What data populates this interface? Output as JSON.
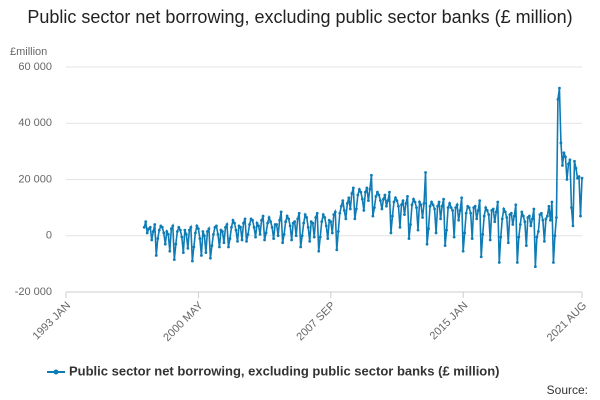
{
  "chart_data": {
    "type": "line",
    "title": "Public sector net borrowing, excluding public sector banks (£ million)",
    "y_unit": "£million",
    "source": "Source:",
    "xlim": [
      "1993-01",
      "2021-08"
    ],
    "xticks": [
      {
        "value": "1993-01",
        "label": "1993 JAN"
      },
      {
        "value": "2000-05",
        "label": "2000 MAY"
      },
      {
        "value": "2007-09",
        "label": "2007 SEP"
      },
      {
        "value": "2015-01",
        "label": "2015 JAN"
      },
      {
        "value": "2021-08",
        "label": "2021 AUG"
      }
    ],
    "ylim": [
      -20000,
      60000
    ],
    "yticks": [
      {
        "value": -20000,
        "label": "-20 000"
      },
      {
        "value": 0,
        "label": "0"
      },
      {
        "value": 20000,
        "label": "20 000"
      },
      {
        "value": 40000,
        "label": "40 000"
      },
      {
        "value": 60000,
        "label": "60 000"
      }
    ],
    "grid": true,
    "x": [
      "1997-05",
      "1997-06",
      "1997-07",
      "1997-08",
      "1997-09",
      "1997-10",
      "1997-11",
      "1997-12",
      "1998-01",
      "1998-02",
      "1998-03",
      "1998-04",
      "1998-05",
      "1998-06",
      "1998-07",
      "1998-08",
      "1998-09",
      "1998-10",
      "1998-11",
      "1998-12",
      "1999-01",
      "1999-02",
      "1999-03",
      "1999-04",
      "1999-05",
      "1999-06",
      "1999-07",
      "1999-08",
      "1999-09",
      "1999-10",
      "1999-11",
      "1999-12",
      "2000-01",
      "2000-02",
      "2000-03",
      "2000-04",
      "2000-05",
      "2000-06",
      "2000-07",
      "2000-08",
      "2000-09",
      "2000-10",
      "2000-11",
      "2000-12",
      "2001-01",
      "2001-02",
      "2001-03",
      "2001-04",
      "2001-05",
      "2001-06",
      "2001-07",
      "2001-08",
      "2001-09",
      "2001-10",
      "2001-11",
      "2001-12",
      "2002-01",
      "2002-02",
      "2002-03",
      "2002-04",
      "2002-05",
      "2002-06",
      "2002-07",
      "2002-08",
      "2002-09",
      "2002-10",
      "2002-11",
      "2002-12",
      "2003-01",
      "2003-02",
      "2003-03",
      "2003-04",
      "2003-05",
      "2003-06",
      "2003-07",
      "2003-08",
      "2003-09",
      "2003-10",
      "2003-11",
      "2003-12",
      "2004-01",
      "2004-02",
      "2004-03",
      "2004-04",
      "2004-05",
      "2004-06",
      "2004-07",
      "2004-08",
      "2004-09",
      "2004-10",
      "2004-11",
      "2004-12",
      "2005-01",
      "2005-02",
      "2005-03",
      "2005-04",
      "2005-05",
      "2005-06",
      "2005-07",
      "2005-08",
      "2005-09",
      "2005-10",
      "2005-11",
      "2005-12",
      "2006-01",
      "2006-02",
      "2006-03",
      "2006-04",
      "2006-05",
      "2006-06",
      "2006-07",
      "2006-08",
      "2006-09",
      "2006-10",
      "2006-11",
      "2006-12",
      "2007-01",
      "2007-02",
      "2007-03",
      "2007-04",
      "2007-05",
      "2007-06",
      "2007-07",
      "2007-08",
      "2007-09",
      "2007-10",
      "2007-11",
      "2007-12",
      "2008-01",
      "2008-02",
      "2008-03",
      "2008-04",
      "2008-05",
      "2008-06",
      "2008-07",
      "2008-08",
      "2008-09",
      "2008-10",
      "2008-11",
      "2008-12",
      "2009-01",
      "2009-02",
      "2009-03",
      "2009-04",
      "2009-05",
      "2009-06",
      "2009-07",
      "2009-08",
      "2009-09",
      "2009-10",
      "2009-11",
      "2009-12",
      "2010-01",
      "2010-02",
      "2010-03",
      "2010-04",
      "2010-05",
      "2010-06",
      "2010-07",
      "2010-08",
      "2010-09",
      "2010-10",
      "2010-11",
      "2010-12",
      "2011-01",
      "2011-02",
      "2011-03",
      "2011-04",
      "2011-05",
      "2011-06",
      "2011-07",
      "2011-08",
      "2011-09",
      "2011-10",
      "2011-11",
      "2011-12",
      "2012-01",
      "2012-02",
      "2012-03",
      "2012-04",
      "2012-05",
      "2012-06",
      "2012-07",
      "2012-08",
      "2012-09",
      "2012-10",
      "2012-11",
      "2012-12",
      "2013-01",
      "2013-02",
      "2013-03",
      "2013-04",
      "2013-05",
      "2013-06",
      "2013-07",
      "2013-08",
      "2013-09",
      "2013-10",
      "2013-11",
      "2013-12",
      "2014-01",
      "2014-02",
      "2014-03",
      "2014-04",
      "2014-05",
      "2014-06",
      "2014-07",
      "2014-08",
      "2014-09",
      "2014-10",
      "2014-11",
      "2014-12",
      "2015-01",
      "2015-02",
      "2015-03",
      "2015-04",
      "2015-05",
      "2015-06",
      "2015-07",
      "2015-08",
      "2015-09",
      "2015-10",
      "2015-11",
      "2015-12",
      "2016-01",
      "2016-02",
      "2016-03",
      "2016-04",
      "2016-05",
      "2016-06",
      "2016-07",
      "2016-08",
      "2016-09",
      "2016-10",
      "2016-11",
      "2016-12",
      "2017-01",
      "2017-02",
      "2017-03",
      "2017-04",
      "2017-05",
      "2017-06",
      "2017-07",
      "2017-08",
      "2017-09",
      "2017-10",
      "2017-11",
      "2017-12",
      "2018-01",
      "2018-02",
      "2018-03",
      "2018-04",
      "2018-05",
      "2018-06",
      "2018-07",
      "2018-08",
      "2018-09",
      "2018-10",
      "2018-11",
      "2018-12",
      "2019-01",
      "2019-02",
      "2019-03",
      "2019-04",
      "2019-05",
      "2019-06",
      "2019-07",
      "2019-08",
      "2019-09",
      "2019-10",
      "2019-11",
      "2019-12",
      "2020-01",
      "2020-02",
      "2020-03",
      "2020-04",
      "2020-05",
      "2020-06",
      "2020-07",
      "2020-08",
      "2020-09",
      "2020-10",
      "2020-11",
      "2020-12",
      "2021-01",
      "2021-02",
      "2021-03",
      "2021-04",
      "2021-05",
      "2021-06",
      "2021-07",
      "2021-08"
    ],
    "series": [
      {
        "name": "Public sector net borrowing, excluding public sector banks (£ million)",
        "color": "#0f7cb5",
        "values": [
          3000,
          5000,
          1000,
          2500,
          3000,
          -1500,
          1500,
          4000,
          -7000,
          -1000,
          2000,
          3500,
          3000,
          1000,
          -3000,
          1500,
          500,
          -5500,
          2500,
          3500,
          -8500,
          -3000,
          1500,
          3000,
          2000,
          -500,
          -6000,
          2000,
          500,
          -4500,
          2000,
          3000,
          -9000,
          -4000,
          1000,
          3500,
          2500,
          -1000,
          -7000,
          1500,
          0,
          -6000,
          1500,
          2500,
          -8000,
          -3500,
          500,
          3000,
          3500,
          500,
          -4000,
          2000,
          1500,
          -2500,
          3000,
          4000,
          -4000,
          -1000,
          3000,
          5500,
          4500,
          2000,
          -2000,
          3500,
          3000,
          -1500,
          4500,
          6000,
          -2000,
          500,
          4000,
          6000,
          5500,
          3000,
          -500,
          4500,
          3500,
          500,
          5500,
          7000,
          -1500,
          1000,
          4500,
          6500,
          5000,
          3000,
          -1000,
          4000,
          4000,
          0,
          5500,
          8500,
          -2500,
          500,
          5000,
          7000,
          6000,
          3500,
          -1500,
          4500,
          5000,
          0,
          6000,
          8000,
          -4000,
          0,
          4500,
          7500,
          6500,
          3000,
          -2000,
          5000,
          4500,
          -500,
          6500,
          8000,
          -5500,
          -500,
          5000,
          7500,
          6500,
          3500,
          -1000,
          5500,
          5000,
          1000,
          7500,
          8500,
          -5000,
          1500,
          8000,
          10500,
          12500,
          9000,
          6000,
          11500,
          13500,
          9500,
          15000,
          17000,
          6000,
          9500,
          14500,
          16500,
          15500,
          13000,
          9000,
          15500,
          17000,
          12500,
          16500,
          21500,
          7000,
          10000,
          14000,
          15500,
          14500,
          12500,
          9500,
          13000,
          14500,
          10500,
          12500,
          15500,
          1000,
          7000,
          12000,
          13500,
          12500,
          10500,
          3000,
          11000,
          12500,
          7500,
          11500,
          14000,
          -1000,
          4000,
          11000,
          13000,
          12000,
          10000,
          2000,
          12000,
          11000,
          6500,
          11500,
          22500,
          -3000,
          2500,
          10500,
          12000,
          11000,
          9500,
          1000,
          10500,
          12000,
          6000,
          10500,
          13000,
          -3500,
          2000,
          10000,
          11500,
          10000,
          9000,
          -500,
          10000,
          11000,
          5500,
          9000,
          13500,
          -5500,
          1000,
          8000,
          10500,
          10000,
          8000,
          -1000,
          10000,
          10500,
          6000,
          9000,
          12500,
          -7500,
          500,
          7000,
          10000,
          9000,
          7500,
          -1500,
          9000,
          9500,
          5000,
          8500,
          12000,
          -9500,
          -500,
          6000,
          9500,
          8500,
          6500,
          -2500,
          7500,
          8000,
          4000,
          7000,
          11000,
          -9500,
          -500,
          4000,
          8500,
          7000,
          5000,
          -3500,
          6500,
          7000,
          3500,
          6000,
          9500,
          -11000,
          -500,
          1500,
          7500,
          8000,
          5500,
          -2000,
          6000,
          7000,
          10500,
          5500,
          12000,
          -9500,
          0,
          6500,
          48500,
          52500,
          33000,
          25000,
          29500,
          28000,
          20000,
          25500,
          27000,
          10000,
          3500,
          26500,
          24000,
          20500,
          21000,
          7000,
          20500
        ]
      }
    ]
  }
}
